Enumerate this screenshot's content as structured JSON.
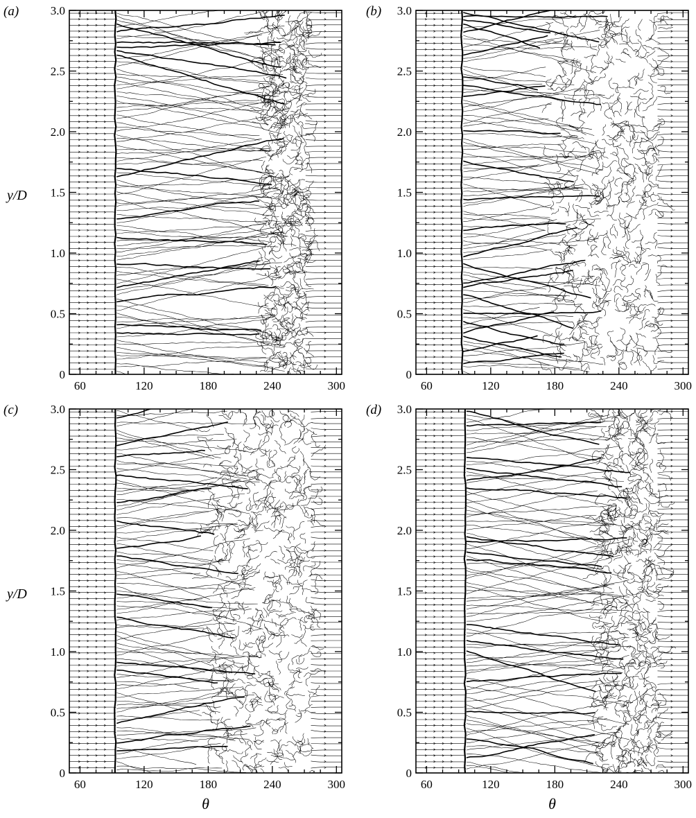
{
  "figure": {
    "type": "streamline-plot-grid",
    "x_axis_label": "θ",
    "y_axis_label_main": "y",
    "y_axis_label_sub": "/D",
    "colors": {
      "line": "#000000",
      "frame": "#000000",
      "background": "#ffffff"
    }
  },
  "chart_data": [
    {
      "type": "streamline",
      "panel_label": "(a)",
      "xlabel": "",
      "ylabel": "y/D",
      "xlim": [
        50,
        305
      ],
      "ylim": [
        0,
        3.0
      ],
      "x_ticks": [
        "60",
        "120",
        "180",
        "240",
        "300"
      ],
      "y_ticks": [
        "0",
        "0.5",
        "1.0",
        "1.5",
        "2.0",
        "2.5",
        "3.0"
      ],
      "x_tick_values": [
        60,
        120,
        180,
        240,
        300
      ],
      "y_tick_values": [
        0,
        0.5,
        1.0,
        1.5,
        2.0,
        2.5,
        3.0
      ],
      "separation_theta": 93,
      "turbulent_zone_theta": [
        230,
        275
      ],
      "reattachment_theta": 275
    },
    {
      "type": "streamline",
      "panel_label": "(b)",
      "xlabel": "",
      "ylabel": "",
      "xlim": [
        50,
        305
      ],
      "ylim": [
        0,
        3.0
      ],
      "x_ticks": [
        "60",
        "120",
        "180",
        "240",
        "300"
      ],
      "y_ticks": [
        "0",
        "0.5",
        "1.0",
        "1.5",
        "2.0",
        "2.5",
        "3.0"
      ],
      "x_tick_values": [
        60,
        120,
        180,
        240,
        300
      ],
      "y_tick_values": [
        0,
        0.5,
        1.0,
        1.5,
        2.0,
        2.5,
        3.0
      ],
      "separation_theta": 93,
      "turbulent_zone_theta": [
        175,
        280
      ],
      "reattachment_theta": 280
    },
    {
      "type": "streamline",
      "panel_label": "(c)",
      "xlabel": "θ",
      "ylabel": "y/D",
      "xlim": [
        50,
        305
      ],
      "ylim": [
        0,
        3.0
      ],
      "x_ticks": [
        "60",
        "120",
        "180",
        "240",
        "300"
      ],
      "y_ticks": [
        "0",
        "0.5",
        "1.0",
        "1.5",
        "2.0",
        "2.5",
        "3.0"
      ],
      "x_tick_values": [
        60,
        120,
        180,
        240,
        300
      ],
      "y_tick_values": [
        0,
        0.5,
        1.0,
        1.5,
        2.0,
        2.5,
        3.0
      ],
      "separation_theta": 93,
      "turbulent_zone_theta": [
        180,
        280
      ],
      "reattachment_theta": 280
    },
    {
      "type": "streamline",
      "panel_label": "(d)",
      "xlabel": "θ",
      "ylabel": "",
      "xlim": [
        50,
        305
      ],
      "ylim": [
        0,
        3.0
      ],
      "x_ticks": [
        "60",
        "120",
        "180",
        "240",
        "300"
      ],
      "y_ticks": [
        "0",
        "0.5",
        "1.0",
        "1.5",
        "2.0",
        "2.5",
        "3.0"
      ],
      "x_tick_values": [
        60,
        120,
        180,
        240,
        300
      ],
      "y_tick_values": [
        0,
        0.5,
        1.0,
        1.5,
        2.0,
        2.5,
        3.0
      ],
      "separation_theta": 96,
      "turbulent_zone_theta": [
        220,
        280
      ],
      "reattachment_theta": 280
    }
  ]
}
